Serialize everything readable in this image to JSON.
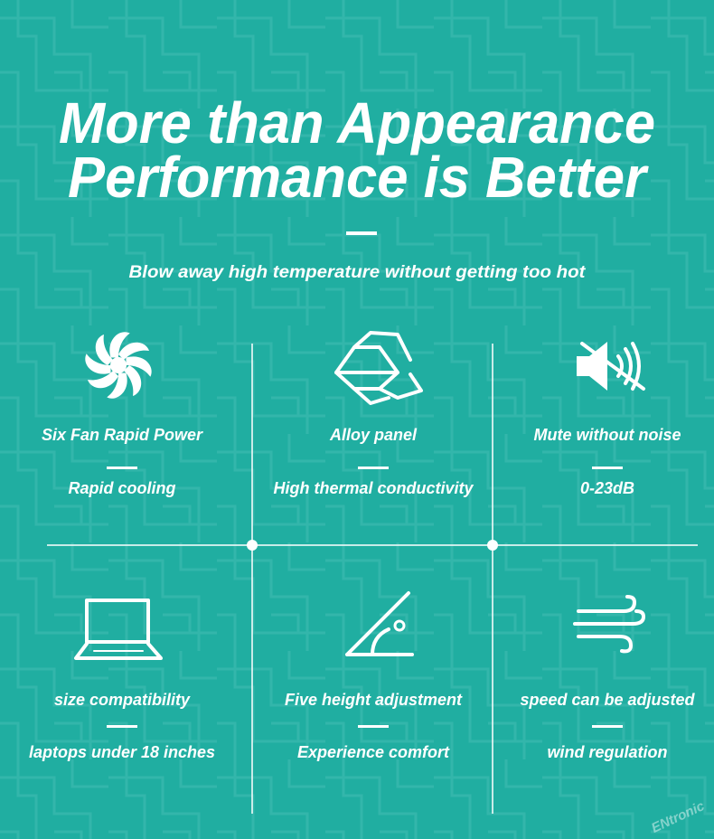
{
  "header": {
    "title_lines": [
      "More than Appearance",
      "Performance is Better"
    ],
    "subtitle": "Blow away high temperature without getting too hot"
  },
  "features": [
    {
      "title": "Six Fan Rapid Power",
      "detail": "Rapid cooling"
    },
    {
      "title": "Alloy panel",
      "detail": "High thermal conductivity"
    },
    {
      "title": "Mute without noise",
      "detail": "0-23dB"
    },
    {
      "title": "size compatibility",
      "detail": "laptops under 18 inches"
    },
    {
      "title": "Five height adjustment",
      "detail": "Experience comfort"
    },
    {
      "title": "speed can be adjusted",
      "detail": "wind regulation"
    }
  ],
  "watermark": "ENtronic"
}
